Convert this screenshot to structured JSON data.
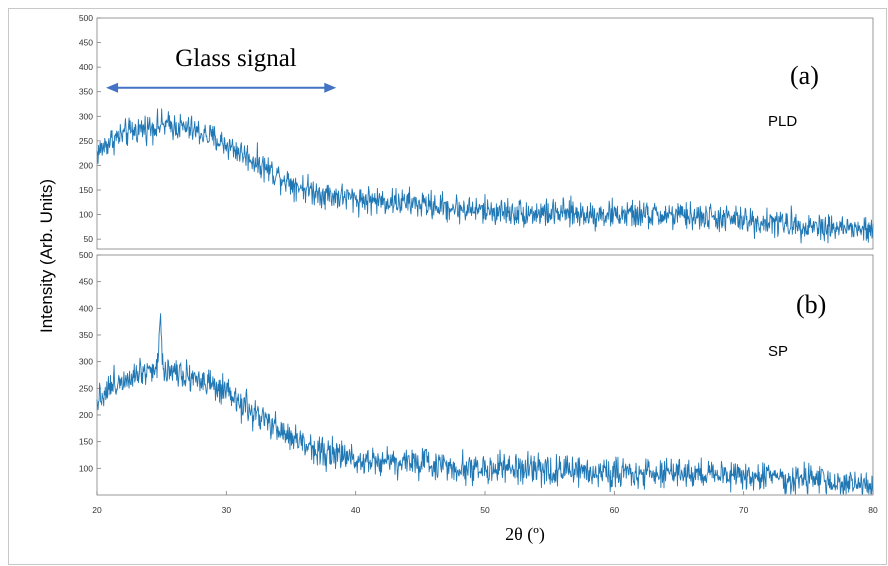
{
  "chart_data": {
    "type": "line",
    "xlabel": "2θ (º)",
    "ylabel": "Intensity (Arb. Units)",
    "xlim": [
      20,
      80
    ],
    "x_ticks": [
      20,
      30,
      40,
      50,
      60,
      70,
      80
    ],
    "line_color": "#1f77b4",
    "annotation": {
      "text": "Glass signal",
      "arrow_color": "#4472c4",
      "x_from": 20.7,
      "x_to": 38.5,
      "y_value": 358
    },
    "panels": [
      {
        "letter": "(a)",
        "method": "PLD",
        "ylim": [
          30,
          500
        ],
        "y_ticks": [
          50,
          100,
          150,
          200,
          250,
          300,
          350,
          400,
          450,
          500
        ],
        "noise_amplitude": 14,
        "series": {
          "x": [
            20,
            21,
            22,
            23,
            24,
            25,
            26,
            27,
            28,
            29,
            30,
            31,
            32,
            33,
            34,
            35,
            36,
            37,
            38,
            39,
            40,
            42,
            44,
            46,
            48,
            50,
            52,
            54,
            56,
            58,
            60,
            62,
            64,
            66,
            68,
            70,
            72,
            74,
            76,
            78,
            80
          ],
          "y": [
            225,
            250,
            262,
            272,
            278,
            282,
            280,
            275,
            266,
            255,
            242,
            228,
            212,
            196,
            180,
            166,
            154,
            146,
            140,
            136,
            132,
            128,
            124,
            118,
            112,
            108,
            105,
            103,
            102,
            101,
            100,
            99,
            98,
            96,
            93,
            88,
            84,
            80,
            76,
            72,
            66
          ]
        },
        "peaks": []
      },
      {
        "letter": "(b)",
        "method": "SP",
        "ylim": [
          50,
          500
        ],
        "y_ticks": [
          100,
          150,
          200,
          250,
          300,
          350,
          400,
          450,
          500
        ],
        "noise_amplitude": 14,
        "series": {
          "x": [
            20,
            21,
            22,
            23,
            24,
            25,
            26,
            27,
            28,
            29,
            30,
            31,
            32,
            33,
            34,
            35,
            36,
            37,
            38,
            39,
            40,
            42,
            44,
            46,
            48,
            50,
            52,
            54,
            56,
            58,
            60,
            62,
            64,
            66,
            68,
            70,
            72,
            74,
            76,
            78,
            80
          ],
          "y": [
            230,
            252,
            268,
            280,
            287,
            288,
            284,
            276,
            265,
            252,
            238,
            222,
            205,
            188,
            172,
            158,
            146,
            136,
            128,
            122,
            118,
            115,
            112,
            108,
            102,
            99,
            98,
            96,
            95,
            94,
            93,
            92,
            91,
            90,
            89,
            87,
            83,
            80,
            76,
            71,
            66
          ]
        },
        "peaks": [
          {
            "x": 24.9,
            "y": 375
          }
        ]
      }
    ]
  }
}
